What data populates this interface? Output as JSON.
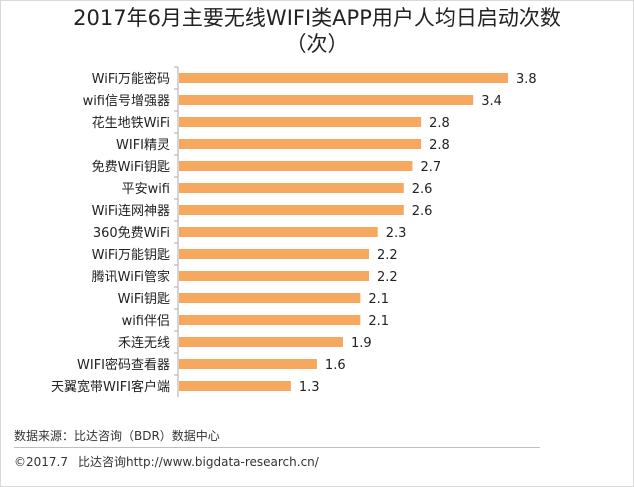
{
  "header": {
    "title": "2017年6月主要无线WIFI类APP用户人均日启动次数",
    "subtitle": "（次）"
  },
  "chart_data": {
    "type": "bar",
    "orientation": "horizontal",
    "title": "2017年6月主要无线WIFI类APP用户人均日启动次数",
    "subtitle": "（次）",
    "categories": [
      "WiFi万能密码",
      "wifi信号增强器",
      "花生地铁WiFi",
      "WIFI精灵",
      "免费WiFi钥匙",
      "平安wifi",
      "WiFi连网神器",
      "360免费WiFi",
      "WiFi万能钥匙",
      "腾讯WiFi管家",
      "WiFi钥匙",
      "wifi伴侣",
      "禾连无线",
      "WIFI密码查看器",
      "天翼宽带WIFI客户端"
    ],
    "values": [
      3.8,
      3.4,
      2.8,
      2.8,
      2.7,
      2.6,
      2.6,
      2.3,
      2.2,
      2.2,
      2.1,
      2.1,
      1.9,
      1.6,
      1.3
    ],
    "data_labels": [
      "3.8",
      "3.4",
      "2.8",
      "2.8",
      "2.7",
      "2.6",
      "2.6",
      "2.3",
      "2.2",
      "2.2",
      "2.1",
      "2.1",
      "1.9",
      "1.6",
      "1.3"
    ],
    "xlim": [
      0,
      4.1
    ],
    "grid": false,
    "legend": "none",
    "bar_color": "#F5A85E",
    "axis_color": "#AAAAAA"
  },
  "footer": {
    "source": "数据来源：比达咨询（BDR）数据中心",
    "copyright": "©2017.7",
    "company": "比达咨询http://www.bigdata-research.cn/"
  }
}
